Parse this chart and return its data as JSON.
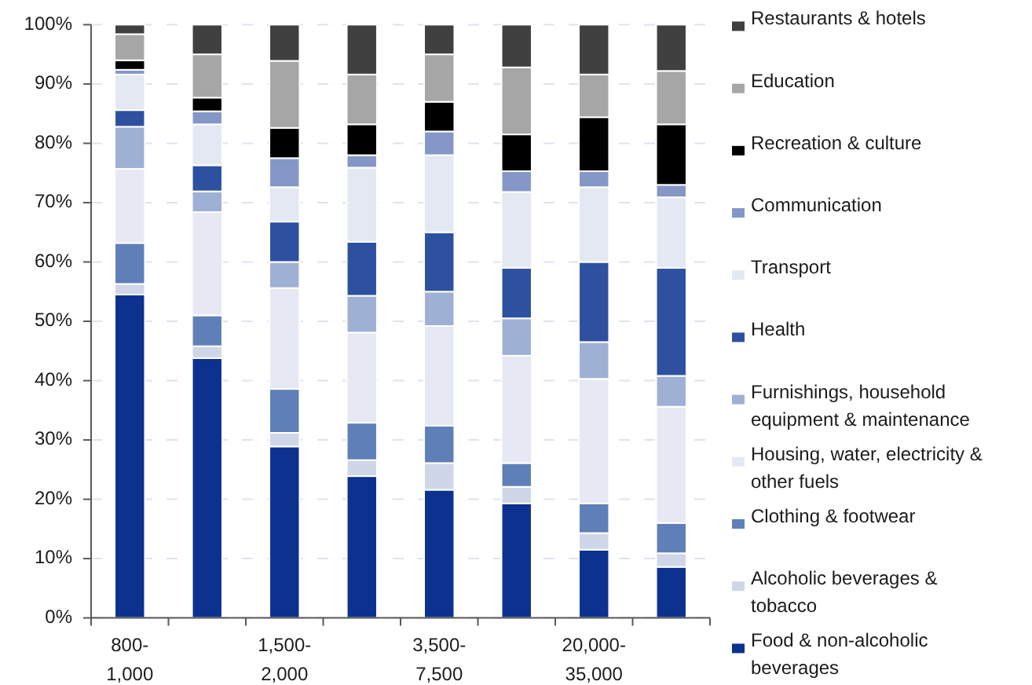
{
  "chart_data": {
    "type": "bar",
    "stacked": true,
    "categories": [
      "800-1,000",
      null,
      "1,500-2,000",
      null,
      "3,500-7,500",
      null,
      "20,000-35,000",
      null
    ],
    "series": [
      {
        "name": "Food & non-alcoholic beverages",
        "color": "#0c318f",
        "values": [
          54.5,
          43.8,
          28.9,
          23.9,
          21.6,
          19.3,
          11.5,
          8.6
        ]
      },
      {
        "name": "Alcoholic beverages & tobacco",
        "color": "#cfd6e8",
        "values": [
          1.8,
          2.0,
          2.3,
          2.7,
          4.5,
          2.8,
          2.8,
          2.3
        ]
      },
      {
        "name": "Clothing & footwear",
        "color": "#5f7fb8",
        "values": [
          6.9,
          5.2,
          7.4,
          6.3,
          6.3,
          4.0,
          5.0,
          5.1
        ]
      },
      {
        "name": "Housing, water, electricity & other fuels",
        "color": "#e6e9f3",
        "values": [
          12.5,
          17.4,
          17.0,
          15.2,
          16.8,
          18.1,
          21.0,
          19.6
        ]
      },
      {
        "name": "Furnishings, household equipment & maintenance",
        "color": "#9fb0d5",
        "values": [
          7.1,
          3.5,
          4.4,
          6.2,
          5.8,
          6.3,
          6.2,
          5.2
        ]
      },
      {
        "name": "Health",
        "color": "#2e50a0",
        "values": [
          2.8,
          4.4,
          6.8,
          9.1,
          10.0,
          8.5,
          13.5,
          18.2
        ]
      },
      {
        "name": "Transport",
        "color": "#e4e8f2",
        "values": [
          6.0,
          6.9,
          5.8,
          12.5,
          13.0,
          12.8,
          12.6,
          11.9
        ]
      },
      {
        "name": "Communication",
        "color": "#8497c7",
        "values": [
          0.8,
          2.2,
          4.9,
          2.1,
          4.0,
          3.5,
          2.7,
          2.1
        ]
      },
      {
        "name": "Recreation & culture",
        "color": "#000000",
        "values": [
          1.6,
          2.3,
          5.1,
          5.2,
          5.0,
          6.2,
          9.1,
          10.2
        ]
      },
      {
        "name": "Education",
        "color": "#a6a6a6",
        "values": [
          4.4,
          7.3,
          11.3,
          8.4,
          8.0,
          11.3,
          7.2,
          9.0
        ]
      },
      {
        "name": "Restaurants & hotels",
        "color": "#404040",
        "values": [
          1.6,
          5.0,
          6.1,
          8.4,
          5.0,
          7.2,
          8.4,
          7.8
        ]
      }
    ],
    "ylim": [
      0,
      100
    ],
    "yticks": [
      {
        "value": 0,
        "label": "0%"
      },
      {
        "value": 10,
        "label": "10%"
      },
      {
        "value": 20,
        "label": "20%"
      },
      {
        "value": 30,
        "label": "30%"
      },
      {
        "value": 40,
        "label": "40%"
      },
      {
        "value": 50,
        "label": "50%"
      },
      {
        "value": 60,
        "label": "60%"
      },
      {
        "value": 70,
        "label": "70%"
      },
      {
        "value": 80,
        "label": "80%"
      },
      {
        "value": 90,
        "label": "90%"
      },
      {
        "value": 100,
        "label": "100%"
      }
    ],
    "grid": "y",
    "legend": "right"
  }
}
